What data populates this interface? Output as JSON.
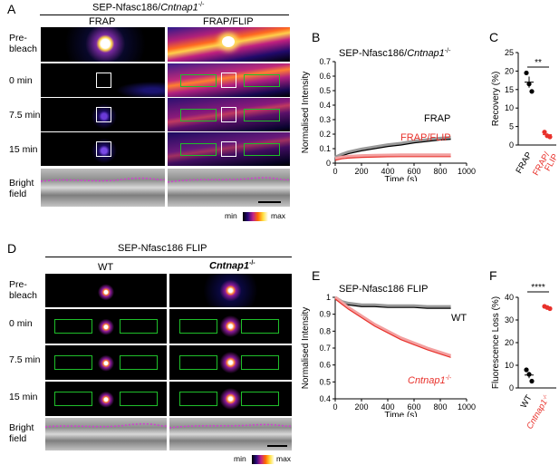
{
  "panels": {
    "A": {
      "letter": "A",
      "title": "SEP-Nfasc186/",
      "title_italic": "Cntnap1",
      "title_sup": "-/-",
      "col1": "FRAP",
      "col2": "FRAP/FLIP",
      "rows": [
        "Pre-\nbleach",
        "0 min",
        "7.5 min",
        "15 min",
        "Bright\nfield"
      ],
      "scale_min": "min",
      "scale_max": "max"
    },
    "B": {
      "letter": "B",
      "title": "SEP-Nfasc186/",
      "title_italic": "Cntnap1",
      "title_sup": "-/-",
      "ylabel": "Normalised Intensity",
      "xlabel": "Time (s)",
      "label_frap": "FRAP",
      "label_flip": "FRAP/FLIP"
    },
    "C": {
      "letter": "C",
      "ylabel": "Recovery (%)",
      "sig": "**",
      "x1": "FRAP",
      "x2": "FRAP/\nFLIP"
    },
    "D": {
      "letter": "D",
      "title": "SEP-Nfasc186 FLIP",
      "col1": "WT",
      "col2": "Cntnap1",
      "col2_sup": "-/-",
      "rows": [
        "Pre-\nbleach",
        "0 min",
        "7.5 min",
        "15 min",
        "Bright\nfield"
      ],
      "scale_min": "min",
      "scale_max": "max"
    },
    "E": {
      "letter": "E",
      "title": "SEP-Nfasc186 FLIP",
      "ylabel": "Normalised Intensity",
      "xlabel": "Time (s)",
      "label_wt": "WT",
      "label_ko": "Cntnap1",
      "label_ko_sup": "-/-"
    },
    "F": {
      "letter": "F",
      "ylabel": "Fluorescence Loss (%)",
      "sig": "****",
      "x1": "WT",
      "x2": "Cntnap1",
      "x2_sup": "-/-"
    }
  },
  "colors": {
    "red": "#e8312b",
    "green": "#1fbf2a",
    "black": "#000000",
    "grey": "#808080"
  },
  "chart_data": [
    {
      "type": "line",
      "panel": "B",
      "xlim": [
        0,
        1000
      ],
      "ylim": [
        0,
        0.7
      ],
      "xticks": [
        0,
        200,
        400,
        600,
        800,
        1000
      ],
      "yticks": [
        0,
        0.1,
        0.2,
        0.3,
        0.4,
        0.5,
        0.6,
        0.7
      ],
      "series": [
        {
          "name": "FRAP",
          "color": "#000000",
          "x": [
            0,
            50,
            100,
            200,
            300,
            400,
            500,
            600,
            700,
            800,
            880
          ],
          "y": [
            0.03,
            0.05,
            0.065,
            0.085,
            0.1,
            0.115,
            0.125,
            0.14,
            0.15,
            0.16,
            0.165
          ]
        },
        {
          "name": "FRAP/FLIP",
          "color": "#e8312b",
          "x": [
            0,
            50,
            100,
            200,
            300,
            400,
            500,
            600,
            700,
            800,
            880
          ],
          "y": [
            0.02,
            0.03,
            0.035,
            0.04,
            0.042,
            0.044,
            0.045,
            0.045,
            0.045,
            0.045,
            0.045
          ]
        }
      ]
    },
    {
      "type": "scatter",
      "panel": "C",
      "categories": [
        "FRAP",
        "FRAP/FLIP"
      ],
      "ylim": [
        0,
        25
      ],
      "yticks": [
        0,
        5,
        10,
        15,
        20,
        25
      ],
      "series": [
        {
          "name": "FRAP",
          "color": "#000000",
          "points": [
            19.5,
            16.5,
            14.5
          ],
          "mean": 17,
          "sem": 1.5
        },
        {
          "name": "FRAP/FLIP",
          "color": "#e8312b",
          "points": [
            3.5,
            2.5,
            2.2
          ],
          "mean": 2.8,
          "sem": 0.4
        }
      ]
    },
    {
      "type": "line",
      "panel": "E",
      "xlim": [
        0,
        1000
      ],
      "ylim": [
        0.4,
        1.0
      ],
      "xticks": [
        0,
        200,
        400,
        600,
        800,
        1000
      ],
      "yticks": [
        0.4,
        0.5,
        0.6,
        0.7,
        0.8,
        0.9,
        1.0
      ],
      "series": [
        {
          "name": "WT",
          "color": "#000000",
          "x": [
            0,
            50,
            100,
            200,
            300,
            400,
            500,
            600,
            700,
            800,
            880
          ],
          "y": [
            0.99,
            0.965,
            0.955,
            0.945,
            0.945,
            0.94,
            0.94,
            0.94,
            0.935,
            0.935,
            0.935
          ]
        },
        {
          "name": "Cntnap1-/-",
          "color": "#e8312b",
          "x": [
            0,
            50,
            100,
            200,
            300,
            400,
            500,
            600,
            700,
            800,
            880
          ],
          "y": [
            0.99,
            0.96,
            0.93,
            0.88,
            0.83,
            0.79,
            0.75,
            0.72,
            0.69,
            0.665,
            0.645
          ]
        }
      ]
    },
    {
      "type": "scatter",
      "panel": "F",
      "categories": [
        "WT",
        "Cntnap1-/-"
      ],
      "ylim": [
        0,
        40
      ],
      "yticks": [
        0,
        10,
        20,
        30,
        40
      ],
      "series": [
        {
          "name": "WT",
          "color": "#000000",
          "points": [
            8,
            6,
            3
          ],
          "mean": 5.7,
          "sem": 1.4
        },
        {
          "name": "Cntnap1-/-",
          "color": "#e8312b",
          "points": [
            36,
            35.5,
            35
          ],
          "mean": 35.5,
          "sem": 0.3
        }
      ]
    }
  ]
}
